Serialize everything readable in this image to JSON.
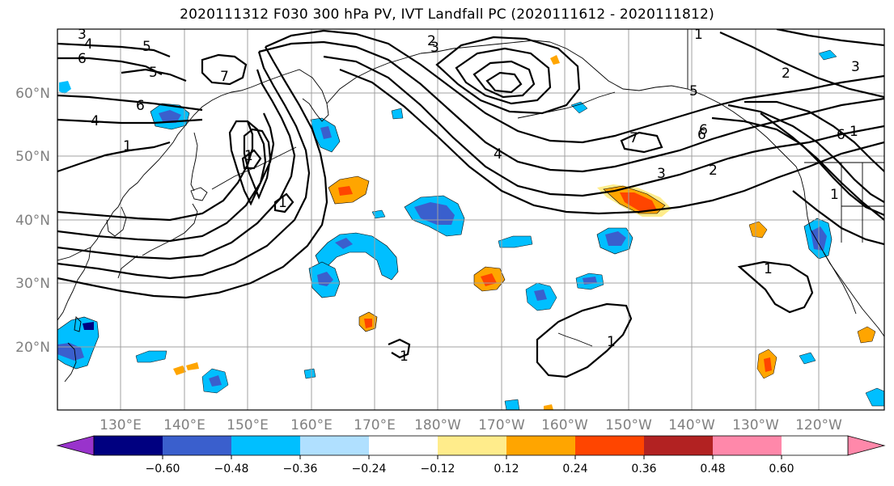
{
  "title": "2020111312 F030 300 hPa PV, IVT Landfall PC (2020111612 - 2020111812)",
  "lat_labels": [
    "20°N",
    "30°N",
    "40°N",
    "50°N",
    "60°N"
  ],
  "lon_labels": [
    "130°E",
    "140°E",
    "150°E",
    "160°E",
    "170°E",
    "180°W",
    "170°W",
    "160°W",
    "150°W",
    "140°W",
    "130°W",
    "120°W"
  ],
  "colorbar": {
    "colors": [
      "#9933cc",
      "#000080",
      "#3a5fcd",
      "#00bfff",
      "#b0e0ff",
      "#ffffff",
      "#ffec8b",
      "#ffa500",
      "#ff4500",
      "#b22222",
      "#ff88aa"
    ],
    "tick_labels": [
      "−0.60",
      "−0.48",
      "−0.36",
      "−0.24",
      "−0.12",
      "0.12",
      "0.24",
      "0.36",
      "0.48",
      "0.60"
    ]
  },
  "contour_labels": [
    "3",
    "4",
    "5",
    "6",
    "5",
    "4",
    "6",
    "1",
    "7",
    "1",
    "1",
    "2",
    "3",
    "4",
    "5",
    "6",
    "7",
    "1",
    "1",
    "2",
    "3",
    "6",
    "1",
    "2",
    "3",
    "6",
    "1",
    "1",
    "1"
  ],
  "map": {
    "pv_contour_color": "#000000",
    "coast_color": "#000000",
    "grid_color": "#a0a0a0"
  }
}
